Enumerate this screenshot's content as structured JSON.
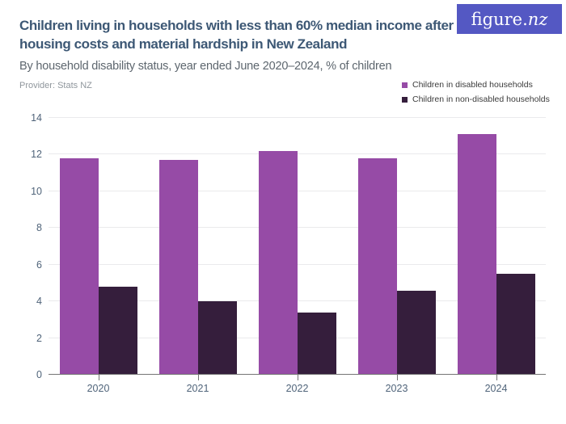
{
  "header": {
    "title": "Children living in households with less than 60% median income after housing costs and material hardship in New Zealand",
    "subtitle": "By household disability status, year ended June 2020–2024, % of children",
    "provider": "Provider: Stats NZ"
  },
  "logo": {
    "prefix": "figure.",
    "suffix": "nz",
    "background_color": "#5458C3",
    "text_color": "#ffffff"
  },
  "chart_data": {
    "type": "bar",
    "title": "Children living in households with less than 60% median income after housing costs and material hardship in New Zealand",
    "subtitle": "By household disability status, year ended June 2020–2024, % of children",
    "categories": [
      "2020",
      "2021",
      "2022",
      "2023",
      "2024"
    ],
    "series": [
      {
        "name": "Children in disabled households",
        "color": "#964BA6",
        "values": [
          11.8,
          11.7,
          12.2,
          11.8,
          13.1
        ]
      },
      {
        "name": "Children in non-disabled households",
        "color": "#351E3C",
        "values": [
          4.8,
          4.0,
          3.4,
          4.6,
          5.5
        ]
      }
    ],
    "xlabel": "",
    "ylabel": "% of children",
    "ylim": [
      0,
      14
    ],
    "yticks": [
      0,
      2,
      4,
      6,
      8,
      10,
      12,
      14
    ],
    "grid": true,
    "legend_position": "top-right",
    "grid_color": "#eaeaec",
    "axis_color": "#757575",
    "tick_label_color": "#50647a"
  }
}
